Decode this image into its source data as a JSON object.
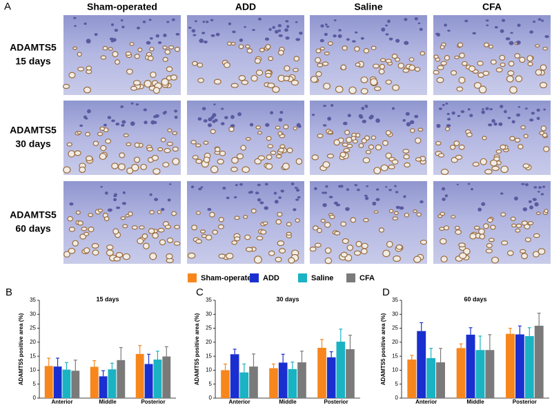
{
  "panel_a": {
    "label": "A",
    "columns": [
      "Sham-operated",
      "ADD",
      "Saline",
      "CFA"
    ],
    "rows": [
      {
        "marker": "ADAMTS5",
        "time": "15 days"
      },
      {
        "marker": "ADAMTS5",
        "time": "30 days"
      },
      {
        "marker": "ADAMTS5",
        "time": "60 days"
      }
    ]
  },
  "chart_data": [
    {
      "type": "bar",
      "panel": "B",
      "title": "15 days",
      "y_label": "ADAMTS5 positive area (%)",
      "categories": [
        "Anterior",
        "Middle",
        "Posterior"
      ],
      "ylim": [
        0,
        35
      ],
      "yticks": [
        0,
        5,
        10,
        15,
        20,
        25,
        30,
        35
      ],
      "series": [
        {
          "name": "Sham-operated",
          "color": "#f7861c",
          "values": [
            11.5,
            11.2,
            15.8
          ],
          "errors": [
            2.8,
            2.2,
            3
          ]
        },
        {
          "name": "ADD",
          "color": "#1a2fd0",
          "values": [
            11.3,
            7.8,
            12.2
          ],
          "errors": [
            3,
            2,
            3.5
          ]
        },
        {
          "name": "Saline",
          "color": "#1ab3c3",
          "values": [
            10.2,
            10.3,
            13.8
          ],
          "errors": [
            2.5,
            2.2,
            3
          ]
        },
        {
          "name": "CFA",
          "color": "#7a7a7a",
          "values": [
            9.8,
            13.6,
            14.9
          ],
          "errors": [
            3.8,
            4.5,
            3.5
          ]
        }
      ]
    },
    {
      "type": "bar",
      "panel": "C",
      "title": "30 days",
      "y_label": "ADAMTS5 positive area (%)",
      "categories": [
        "Anterior",
        "Middle",
        "Posterior"
      ],
      "ylim": [
        0,
        35
      ],
      "yticks": [
        0,
        5,
        10,
        15,
        20,
        25,
        30,
        35
      ],
      "series": [
        {
          "name": "Sham-operated",
          "color": "#f7861c",
          "values": [
            10,
            10.7,
            18
          ],
          "errors": [
            2.2,
            1.5,
            3
          ]
        },
        {
          "name": "ADD",
          "color": "#1a2fd0",
          "values": [
            15.7,
            12.7,
            14.6
          ],
          "errors": [
            1.8,
            3,
            2
          ]
        },
        {
          "name": "Saline",
          "color": "#1ab3c3",
          "values": [
            9.2,
            10.4,
            20.2
          ],
          "errors": [
            3,
            2.5,
            4.5
          ]
        },
        {
          "name": "CFA",
          "color": "#7a7a7a",
          "values": [
            11.3,
            12.8,
            17.5
          ],
          "errors": [
            4.5,
            4,
            5
          ]
        }
      ]
    },
    {
      "type": "bar",
      "panel": "D",
      "title": "60 days",
      "y_label": "ADAMTS5 positive area (%)",
      "categories": [
        "Anterior",
        "Middle",
        "Posterior"
      ],
      "ylim": [
        0,
        35
      ],
      "yticks": [
        0,
        5,
        10,
        15,
        20,
        25,
        30,
        35
      ],
      "series": [
        {
          "name": "Sham-operated",
          "color": "#f7861c",
          "values": [
            13.8,
            17.9,
            23
          ],
          "errors": [
            1.5,
            1.5,
            2
          ]
        },
        {
          "name": "ADD",
          "color": "#1a2fd0",
          "values": [
            24,
            22.7,
            22.8
          ],
          "errors": [
            3,
            2.5,
            3
          ]
        },
        {
          "name": "Saline",
          "color": "#1ab3c3",
          "values": [
            14.3,
            17.2,
            22.2
          ],
          "errors": [
            3.5,
            5,
            3
          ]
        },
        {
          "name": "CFA",
          "color": "#7a7a7a",
          "values": [
            12.8,
            17.2,
            25.9
          ],
          "errors": [
            5,
            5.5,
            4.5
          ]
        }
      ]
    }
  ]
}
